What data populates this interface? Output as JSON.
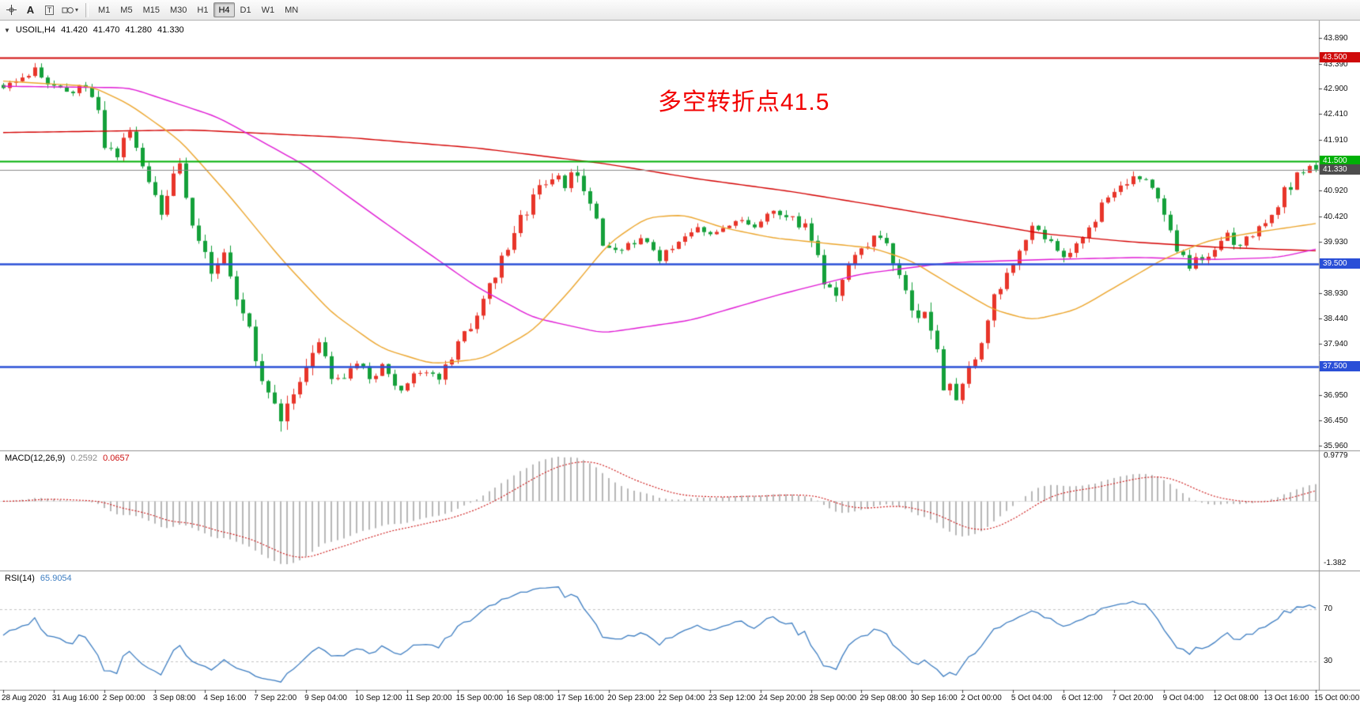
{
  "toolbar": {
    "tools": [
      {
        "name": "crosshair"
      },
      {
        "name": "text",
        "label": "A"
      },
      {
        "name": "text-label",
        "label": "T"
      },
      {
        "name": "shapes"
      }
    ],
    "timeframes": [
      "M1",
      "M5",
      "M15",
      "M30",
      "H1",
      "H4",
      "D1",
      "W1",
      "MN"
    ],
    "active_timeframe": "H4"
  },
  "chart_data": {
    "type": "candlestick",
    "symbol_label": "USOIL,H4",
    "quote": {
      "open": "41.420",
      "high": "41.470",
      "low": "41.280",
      "close": "41.330"
    },
    "annotation": {
      "text": "多空转折点41.5",
      "color": "#f20000"
    },
    "price_axis": {
      "max": 43.89,
      "min": 35.96
    },
    "levels": [
      {
        "price": 43.5,
        "label": "43.500",
        "color": "#cf0a0a",
        "line_width": 2
      },
      {
        "price": 41.5,
        "label": "41.500",
        "color": "#00b007",
        "line_width": 2
      },
      {
        "price": 39.5,
        "label": "39.500",
        "color": "#2a4fd7",
        "line_width": 2.5
      },
      {
        "price": 37.5,
        "label": "37.500",
        "color": "#2a4fd7",
        "line_width": 2.5
      }
    ],
    "bid": {
      "price": 41.33,
      "label": "41.330",
      "badge_color": "#4d4d4d",
      "line_color": "#8a8a8a"
    },
    "price_ticks": [
      "43.890",
      "43.390",
      "42.900",
      "42.410",
      "41.910",
      "40.920",
      "40.420",
      "39.930",
      "38.930",
      "38.440",
      "37.940",
      "36.950",
      "36.450",
      "35.960"
    ],
    "time_labels": [
      "28 Aug 2020",
      "31 Aug 16:00",
      "2 Sep 00:00",
      "3 Sep 08:00",
      "4 Sep 16:00",
      "7 Sep 22:00",
      "9 Sep 04:00",
      "10 Sep 12:00",
      "11 Sep 20:00",
      "15 Sep 00:00",
      "16 Sep 08:00",
      "17 Sep 16:00",
      "20 Sep 23:00",
      "22 Sep 04:00",
      "23 Sep 12:00",
      "24 Sep 20:00",
      "28 Sep 00:00",
      "29 Sep 08:00",
      "30 Sep 16:00",
      "2 Oct 00:00",
      "5 Oct 04:00",
      "6 Oct 12:00",
      "7 Oct 20:00",
      "9 Oct 04:00",
      "12 Oct 08:00",
      "13 Oct 16:00",
      "15 Oct 00:00"
    ],
    "candles": {
      "count": 209,
      "seed": 12345,
      "up_color": "#e8352a",
      "down_color": "#14a03a",
      "close_anchors": [
        [
          0,
          42.95
        ],
        [
          3,
          43.05
        ],
        [
          5,
          43.28
        ],
        [
          7,
          43.0
        ],
        [
          10,
          42.85
        ],
        [
          13,
          43.0
        ],
        [
          15,
          42.6
        ],
        [
          16,
          41.9
        ],
        [
          18,
          41.7
        ],
        [
          20,
          42.0
        ],
        [
          22,
          41.45
        ],
        [
          25,
          40.55
        ],
        [
          27,
          41.15
        ],
        [
          28,
          41.3
        ],
        [
          30,
          40.1
        ],
        [
          33,
          39.35
        ],
        [
          35,
          39.6
        ],
        [
          38,
          38.6
        ],
        [
          41,
          37.3
        ],
        [
          44,
          36.45
        ],
        [
          46,
          36.9
        ],
        [
          48,
          37.5
        ],
        [
          50,
          37.95
        ],
        [
          52,
          37.35
        ],
        [
          54,
          37.2
        ],
        [
          56,
          37.55
        ],
        [
          58,
          37.3
        ],
        [
          60,
          37.5
        ],
        [
          63,
          37.0
        ],
        [
          66,
          37.45
        ],
        [
          69,
          37.25
        ],
        [
          72,
          37.9
        ],
        [
          75,
          38.5
        ],
        [
          78,
          39.3
        ],
        [
          81,
          40.1
        ],
        [
          84,
          40.8
        ],
        [
          87,
          41.2
        ],
        [
          89,
          41.05
        ],
        [
          91,
          41.3
        ],
        [
          93,
          40.7
        ],
        [
          95,
          39.95
        ],
        [
          98,
          39.75
        ],
        [
          101,
          40.0
        ],
        [
          104,
          39.6
        ],
        [
          107,
          39.9
        ],
        [
          110,
          40.2
        ],
        [
          113,
          40.05
        ],
        [
          116,
          40.35
        ],
        [
          119,
          40.2
        ],
        [
          122,
          40.55
        ],
        [
          125,
          40.4
        ],
        [
          128,
          40.05
        ],
        [
          130,
          39.2
        ],
        [
          132,
          38.95
        ],
        [
          134,
          39.4
        ],
        [
          137,
          39.9
        ],
        [
          140,
          40.0
        ],
        [
          142,
          39.2
        ],
        [
          144,
          38.7
        ],
        [
          147,
          38.3
        ],
        [
          149,
          37.2
        ],
        [
          151,
          36.95
        ],
        [
          154,
          37.6
        ],
        [
          157,
          38.9
        ],
        [
          160,
          39.4
        ],
        [
          163,
          40.2
        ],
        [
          166,
          39.95
        ],
        [
          168,
          39.6
        ],
        [
          171,
          40.0
        ],
        [
          174,
          40.6
        ],
        [
          177,
          41.0
        ],
        [
          179,
          41.25
        ],
        [
          181,
          41.1
        ],
        [
          184,
          40.55
        ],
        [
          186,
          39.8
        ],
        [
          188,
          39.45
        ],
        [
          191,
          39.7
        ],
        [
          194,
          40.05
        ],
        [
          196,
          39.85
        ],
        [
          199,
          40.2
        ],
        [
          202,
          40.7
        ],
        [
          205,
          41.2
        ],
        [
          207,
          41.4
        ],
        [
          208,
          41.33
        ]
      ],
      "vol_anchors": [
        [
          0,
          0.14
        ],
        [
          13,
          0.16
        ],
        [
          16,
          0.3
        ],
        [
          25,
          0.24
        ],
        [
          30,
          0.3
        ],
        [
          38,
          0.26
        ],
        [
          44,
          0.34
        ],
        [
          50,
          0.26
        ],
        [
          56,
          0.16
        ],
        [
          66,
          0.14
        ],
        [
          72,
          0.18
        ],
        [
          80,
          0.24
        ],
        [
          88,
          0.2
        ],
        [
          93,
          0.26
        ],
        [
          100,
          0.13
        ],
        [
          110,
          0.13
        ],
        [
          120,
          0.13
        ],
        [
          128,
          0.24
        ],
        [
          134,
          0.18
        ],
        [
          142,
          0.26
        ],
        [
          148,
          0.32
        ],
        [
          152,
          0.26
        ],
        [
          158,
          0.22
        ],
        [
          165,
          0.16
        ],
        [
          172,
          0.18
        ],
        [
          180,
          0.18
        ],
        [
          185,
          0.24
        ],
        [
          190,
          0.16
        ],
        [
          197,
          0.18
        ],
        [
          203,
          0.22
        ],
        [
          208,
          0.12
        ]
      ],
      "last_bar": {
        "open": 41.42,
        "high": 41.47,
        "low": 41.28,
        "close": 41.33
      }
    },
    "moving_averages": [
      {
        "name": "ma-slow-red",
        "color": "#d40000",
        "anchors": [
          [
            0,
            42.05
          ],
          [
            30,
            42.1
          ],
          [
            55,
            41.95
          ],
          [
            75,
            41.75
          ],
          [
            95,
            41.45
          ],
          [
            110,
            41.15
          ],
          [
            125,
            40.9
          ],
          [
            140,
            40.6
          ],
          [
            152,
            40.35
          ],
          [
            165,
            40.08
          ],
          [
            178,
            39.93
          ],
          [
            192,
            39.82
          ],
          [
            208,
            39.75
          ]
        ]
      },
      {
        "name": "ma-mid-magenta",
        "color": "#e01ad5",
        "anchors": [
          [
            0,
            42.95
          ],
          [
            20,
            42.92
          ],
          [
            34,
            42.35
          ],
          [
            48,
            41.4
          ],
          [
            61,
            40.25
          ],
          [
            75,
            39.05
          ],
          [
            84,
            38.45
          ],
          [
            95,
            38.15
          ],
          [
            109,
            38.4
          ],
          [
            123,
            38.9
          ],
          [
            136,
            39.3
          ],
          [
            150,
            39.52
          ],
          [
            165,
            39.58
          ],
          [
            180,
            39.62
          ],
          [
            192,
            39.58
          ],
          [
            202,
            39.62
          ],
          [
            208,
            39.78
          ]
        ]
      },
      {
        "name": "ma-fast-orange",
        "color": "#eca52b",
        "anchors": [
          [
            0,
            43.05
          ],
          [
            14,
            42.95
          ],
          [
            20,
            42.6
          ],
          [
            28,
            41.9
          ],
          [
            36,
            40.8
          ],
          [
            44,
            39.6
          ],
          [
            52,
            38.55
          ],
          [
            60,
            37.85
          ],
          [
            68,
            37.55
          ],
          [
            76,
            37.65
          ],
          [
            84,
            38.2
          ],
          [
            90,
            39.0
          ],
          [
            96,
            39.9
          ],
          [
            102,
            40.4
          ],
          [
            108,
            40.45
          ],
          [
            114,
            40.2
          ],
          [
            122,
            40.0
          ],
          [
            130,
            39.9
          ],
          [
            138,
            39.8
          ],
          [
            144,
            39.55
          ],
          [
            150,
            39.1
          ],
          [
            157,
            38.6
          ],
          [
            163,
            38.4
          ],
          [
            170,
            38.6
          ],
          [
            177,
            39.1
          ],
          [
            184,
            39.6
          ],
          [
            191,
            39.95
          ],
          [
            198,
            40.1
          ],
          [
            208,
            40.28
          ]
        ]
      }
    ],
    "indicators": {
      "macd": {
        "label": "MACD(12,26,9)",
        "value_main": "0.2592",
        "value_signal": "0.0657",
        "axis_max": "0.9779",
        "axis_min": "-1.382",
        "fast": 12,
        "slow": 26,
        "signal": 9,
        "hist_color": "#b8b8b8",
        "signal_color": "#cc1111"
      },
      "rsi": {
        "label": "RSI(14)",
        "value": "65.9054",
        "period": 14,
        "levels": [
          70,
          30
        ],
        "line_color": "#3e7ec2"
      }
    }
  }
}
